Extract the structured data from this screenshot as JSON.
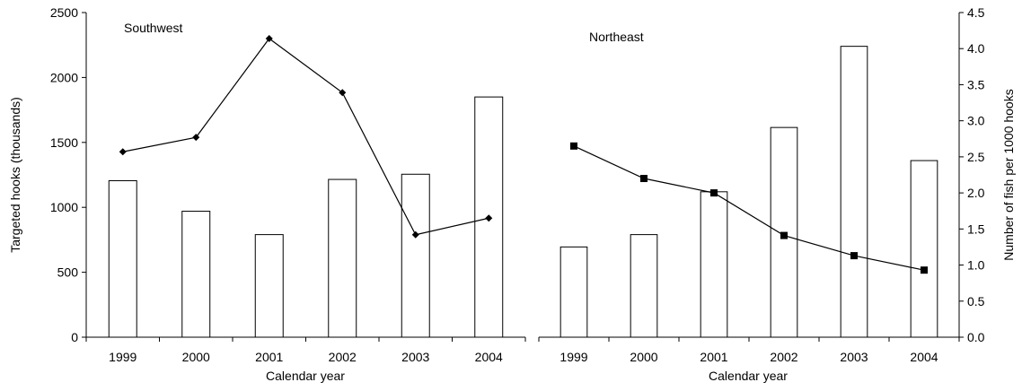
{
  "chart_data": [
    {
      "type": "bar+line",
      "title": "Southwest",
      "xlabel": "Calendar year",
      "ylabel": "Targeted hooks (thousands)",
      "y2label": "",
      "categories": [
        "1999",
        "2000",
        "2001",
        "2002",
        "2003",
        "2004"
      ],
      "ylim": [
        0,
        2500
      ],
      "yticks": [
        "0",
        "500",
        "1000",
        "1500",
        "2000",
        "2500"
      ],
      "y2lim": [
        0,
        4.5
      ],
      "y2ticks": [],
      "bar_values": [
        1205,
        970,
        790,
        1215,
        1255,
        1850
      ],
      "line_values": [
        2.57,
        2.77,
        4.14,
        3.39,
        1.42,
        1.65
      ],
      "line_marker": "diamond"
    },
    {
      "type": "bar+line",
      "title": "Northeast",
      "xlabel": "Calendar year",
      "ylabel": "",
      "y2label": "Number of fish per 1000 hooks",
      "categories": [
        "1999",
        "2000",
        "2001",
        "2002",
        "2003",
        "2004"
      ],
      "ylim": [
        0,
        2500
      ],
      "yticks": [],
      "y2lim": [
        0,
        4.5
      ],
      "y2ticks": [
        "0.0",
        "0.5",
        "1.0",
        "1.5",
        "2.0",
        "2.5",
        "3.0",
        "3.5",
        "4.0",
        "4.5"
      ],
      "bar_values": [
        695,
        790,
        1120,
        1615,
        2240,
        1360
      ],
      "line_values": [
        2.65,
        2.2,
        2.0,
        1.41,
        1.13,
        0.93
      ],
      "line_marker": "square"
    }
  ]
}
